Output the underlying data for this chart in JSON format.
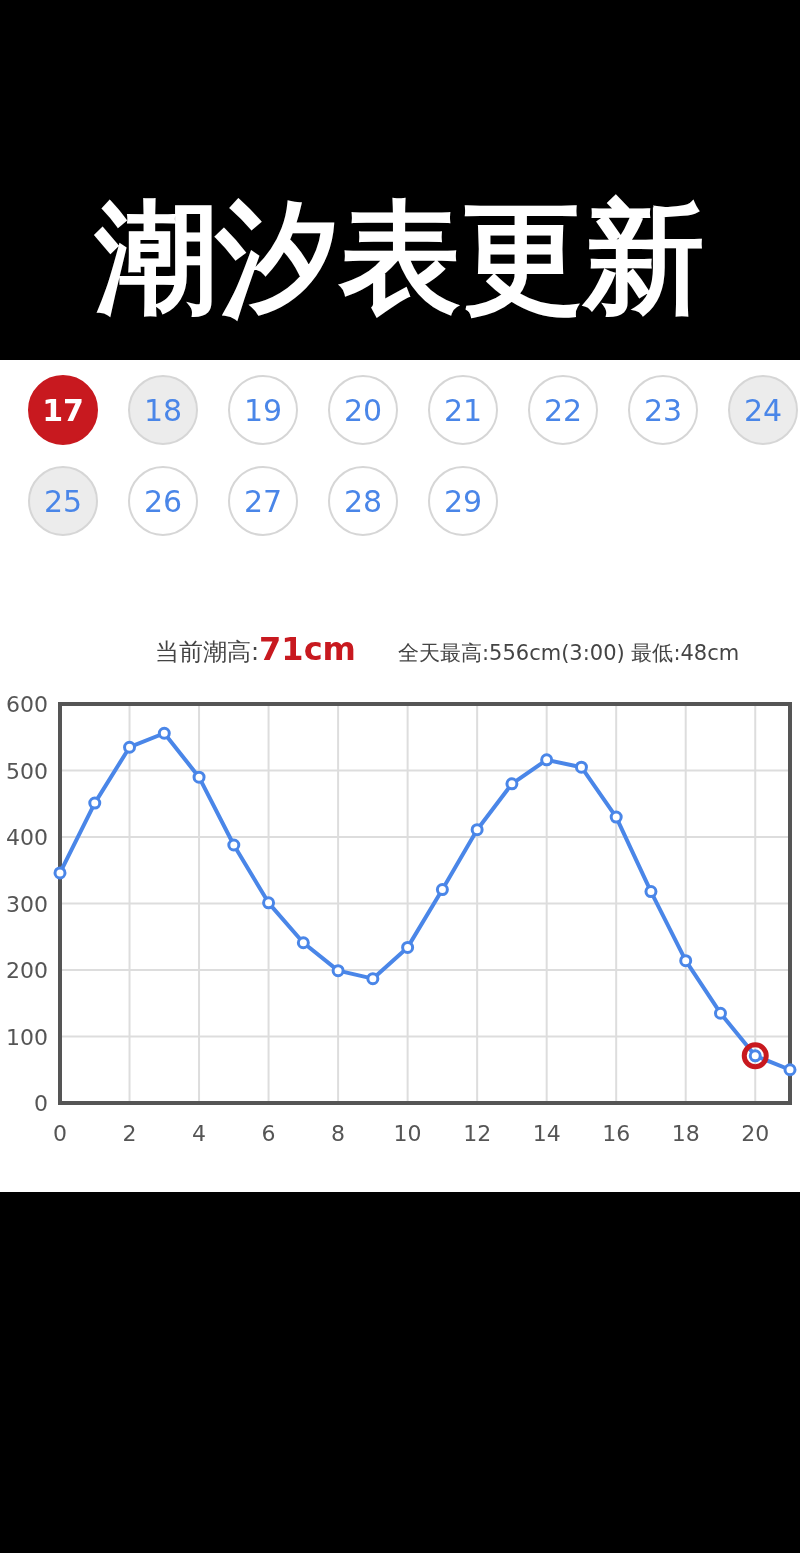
{
  "chart_data": {
    "type": "line",
    "title": "潮汐表更新",
    "x": [
      0,
      1,
      2,
      3,
      4,
      5,
      6,
      7,
      8,
      9,
      10,
      11,
      12,
      13,
      14,
      15,
      16,
      17,
      18,
      19,
      20,
      21
    ],
    "series": [
      {
        "color": "#4a86e8",
        "values": [
          346,
          451,
          535,
          556,
          490,
          388,
          301,
          241,
          199,
          187,
          234,
          321,
          411,
          480,
          516,
          505,
          430,
          318,
          214,
          135,
          71,
          50
        ]
      },
      {
        "type": "scatter",
        "color": "#c8191f",
        "x": [
          20
        ],
        "values": [
          71
        ]
      }
    ],
    "xlim": [
      0,
      21
    ],
    "xticks": [
      0,
      2,
      4,
      6,
      8,
      10,
      12,
      14,
      16,
      18,
      20
    ],
    "ylim": [
      0,
      600
    ],
    "yticks": [
      0,
      100,
      200,
      300,
      400,
      500,
      600
    ],
    "grid": true,
    "marker": "circle",
    "annotations": [
      "17",
      "18",
      "19",
      "20",
      "21",
      "22",
      "23",
      "24",
      "25",
      "26",
      "27",
      "28",
      "29",
      "当前潮高:71cm",
      "全天最高:556cm(3:00) 最低:48cm"
    ]
  }
}
